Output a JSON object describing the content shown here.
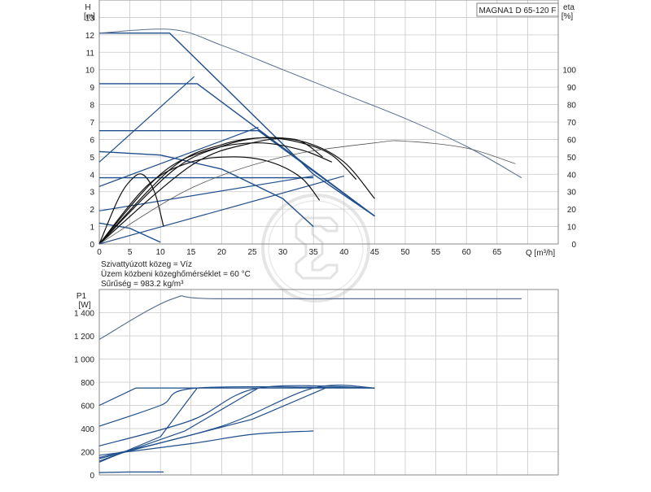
{
  "chart_data": [
    {
      "type": "line",
      "title": "MAGNA1 D 65-120 F",
      "xlabel": "Q [m³/h]",
      "ylabel_title": "H",
      "ylabel_unit": "[m]",
      "y2label_title": "eta",
      "y2label_unit": "[%]",
      "xlim": [
        0,
        75
      ],
      "ylim": [
        0,
        14
      ],
      "y2lim": [
        0,
        140
      ],
      "xticks": [
        0,
        5,
        10,
        15,
        20,
        25,
        30,
        35,
        40,
        45,
        50,
        55,
        60,
        65
      ],
      "xtick_labels": [
        "0",
        "5",
        "10",
        "15",
        "20",
        "25",
        "30",
        "35",
        "40",
        "45",
        "50",
        "55",
        "60",
        "65"
      ],
      "yticks": [
        0,
        1,
        2,
        3,
        4,
        5,
        6,
        7,
        8,
        9,
        10,
        11,
        12,
        13
      ],
      "ytick_labels": [
        "0",
        "1",
        "2",
        "3",
        "4",
        "5",
        "6",
        "7",
        "8",
        "9",
        "10",
        "11",
        "12",
        "13"
      ],
      "y2ticks": [
        0,
        10,
        20,
        30,
        40,
        50,
        60,
        70,
        80,
        90,
        100
      ],
      "y2tick_labels": [
        "0",
        "10",
        "20",
        "30",
        "40",
        "50",
        "60",
        "70",
        "80",
        "90",
        "100"
      ],
      "grid": true,
      "head_series": [
        {
          "color": "#1f4e8c",
          "x": [
            0,
            11.5,
            35,
            45
          ],
          "y": [
            12.1,
            12.1,
            4.0,
            1.6
          ]
        },
        {
          "color": "#1f4e8c",
          "x": [
            0,
            16,
            45
          ],
          "y": [
            9.2,
            9.2,
            1.6
          ]
        },
        {
          "color": "#1f4e8c",
          "x": [
            0,
            26,
            45
          ],
          "y": [
            6.5,
            6.5,
            1.6
          ]
        },
        {
          "color": "#1f4e8c",
          "x": [
            0,
            35
          ],
          "y": [
            3.8,
            3.8
          ]
        },
        {
          "color": "#1f4e8c",
          "x": [
            0,
            10,
            20,
            30,
            35
          ],
          "y": [
            5.3,
            5.1,
            4.3,
            2.6,
            1.0
          ]
        },
        {
          "color": "#1f4e8c",
          "x": [
            0,
            5,
            10
          ],
          "y": [
            1.2,
            0.9,
            0.1
          ]
        }
      ],
      "max_head_series": {
        "color": "#5a6f8f",
        "x": [
          0,
          12,
          20,
          30,
          40,
          50,
          60,
          69
        ],
        "y": [
          12.1,
          12.3,
          11.4,
          10.0,
          8.6,
          7.2,
          5.6,
          3.8
        ]
      },
      "control_curves": [
        {
          "color": "#1f4e8c",
          "x": [
            0,
            15.5
          ],
          "y": [
            4.7,
            9.6
          ]
        },
        {
          "color": "#1f4e8c",
          "x": [
            0,
            26
          ],
          "y": [
            3.3,
            6.7
          ]
        },
        {
          "color": "#1f4e8c",
          "x": [
            0,
            35
          ],
          "y": [
            1.9,
            3.9
          ]
        },
        {
          "color": "#1f4e8c",
          "x": [
            0,
            40
          ],
          "y": [
            0,
            3.9
          ]
        }
      ],
      "efficiency_series": [
        {
          "color": "#111111",
          "x": [
            0,
            3,
            5,
            7,
            9,
            10.5
          ],
          "y": [
            0,
            25,
            36,
            40,
            30,
            10
          ]
        },
        {
          "color": "#111111",
          "x": [
            0,
            8,
            15,
            22,
            28,
            33,
            36
          ],
          "y": [
            0,
            34,
            47,
            50,
            47,
            38,
            25
          ]
        },
        {
          "color": "#111111",
          "x": [
            0,
            10,
            18,
            26,
            33,
            38
          ],
          "y": [
            0,
            40,
            54,
            58,
            54,
            47
          ]
        },
        {
          "color": "#111111",
          "x": [
            0,
            12,
            20,
            27,
            33,
            38,
            42
          ],
          "y": [
            0,
            44,
            57,
            61,
            58,
            51,
            37
          ]
        },
        {
          "color": "#111111",
          "x": [
            0,
            12,
            20,
            27,
            34,
            40,
            45
          ],
          "y": [
            0,
            42,
            56,
            61,
            58,
            47,
            26
          ]
        },
        {
          "color": "#111111",
          "x": [
            0,
            15,
            25,
            32,
            36.5
          ],
          "y": [
            0,
            45,
            58,
            60,
            50
          ]
        },
        {
          "color": "#555555",
          "x": [
            0,
            15,
            30,
            45,
            50,
            60,
            68
          ],
          "y": [
            0,
            32,
            50,
            58,
            59,
            55,
            46
          ]
        }
      ]
    },
    {
      "type": "line",
      "ylabel_title": "P1",
      "ylabel_unit": "[W]",
      "xlim": [
        0,
        75
      ],
      "ylim": [
        0,
        1600
      ],
      "yticks": [
        0,
        200,
        400,
        600,
        800,
        1000,
        1200,
        1400
      ],
      "ytick_labels": [
        "0",
        "200",
        "400",
        "600",
        "800",
        "1 000",
        "1 200",
        "1 400"
      ],
      "grid": true,
      "power_series": [
        {
          "color": "#5a6f8f",
          "x": [
            0,
            12,
            20,
            69
          ],
          "y": [
            1170,
            1520,
            1520,
            1520
          ]
        },
        {
          "color": "#1f4e8c",
          "x": [
            0,
            6,
            45
          ],
          "y": [
            600,
            750,
            750
          ]
        },
        {
          "color": "#1f4e8c",
          "x": [
            0,
            10,
            16,
            45
          ],
          "y": [
            420,
            600,
            750,
            750
          ]
        },
        {
          "color": "#1f4e8c",
          "x": [
            0,
            15,
            26,
            45
          ],
          "y": [
            250,
            470,
            750,
            750
          ]
        },
        {
          "color": "#1f4e8c",
          "x": [
            0,
            20,
            35,
            45
          ],
          "y": [
            150,
            420,
            750,
            750
          ]
        },
        {
          "color": "#1f4e8c",
          "x": [
            0,
            15,
            25,
            35
          ],
          "y": [
            170,
            270,
            350,
            380
          ]
        },
        {
          "color": "#1f4e8c",
          "x": [
            0,
            10,
            16
          ],
          "y": [
            110,
            330,
            750
          ]
        },
        {
          "color": "#1f4e8c",
          "x": [
            0,
            14,
            26
          ],
          "y": [
            120,
            380,
            750
          ]
        },
        {
          "color": "#1f4e8c",
          "x": [
            0,
            25,
            37
          ],
          "y": [
            140,
            480,
            750
          ]
        },
        {
          "color": "#1f4e8c",
          "x": [
            0,
            5,
            10.5
          ],
          "y": [
            20,
            25,
            25
          ]
        }
      ]
    }
  ],
  "info": {
    "line1": "Szivattyúzott közeg = Víz",
    "line2": "Üzem közbeni közeghőmérséklet = 60 °C",
    "line3": "Sűrűség = 983.2 kg/m³"
  },
  "logo": {
    "color": "#e6e6e6"
  }
}
